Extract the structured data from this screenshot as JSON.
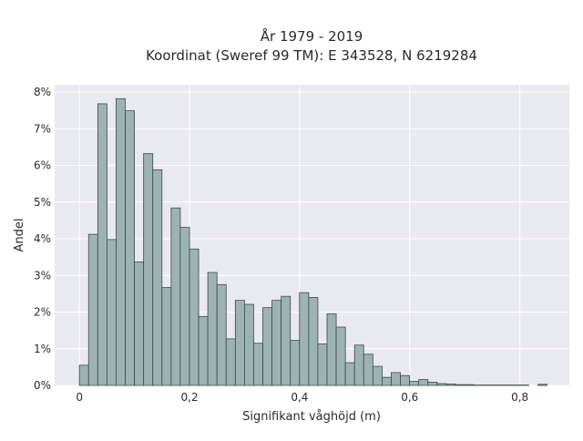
{
  "chart_data": {
    "type": "bar",
    "title_lines": [
      "År 1979 - 2019",
      "Koordinat (Sweref 99 TM): E 343528, N 6219284"
    ],
    "xlabel": "Signifikant våghöjd (m)",
    "ylabel": "Andel",
    "xlim": [
      -0.045,
      0.89
    ],
    "ylim": [
      0,
      0.082
    ],
    "grid": true,
    "bin_width": 0.01666,
    "x_ticks": [
      0,
      0.2,
      0.4,
      0.6,
      0.8
    ],
    "x_tick_labels": [
      "0",
      "0,2",
      "0,4",
      "0,6",
      "0,8"
    ],
    "y_ticks": [
      0,
      0.01,
      0.02,
      0.03,
      0.04,
      0.05,
      0.06,
      0.07,
      0.08
    ],
    "y_tick_labels": [
      "0%",
      "1%",
      "2%",
      "3%",
      "4%",
      "5%",
      "6%",
      "7%",
      "8%"
    ],
    "bin_starts": [
      0,
      0.01666,
      0.03332,
      0.04998,
      0.06664,
      0.0833,
      0.09996,
      0.11662,
      0.13328,
      0.14994,
      0.1666,
      0.18326,
      0.19992,
      0.21658,
      0.23324,
      0.2499,
      0.26656,
      0.28322,
      0.29988,
      0.31654,
      0.3332,
      0.34986,
      0.36652,
      0.38318,
      0.39984,
      0.4165,
      0.43316,
      0.44982,
      0.46648,
      0.48314,
      0.4998,
      0.51646,
      0.53312,
      0.54978,
      0.56644,
      0.5831,
      0.59976,
      0.61642,
      0.63308,
      0.64974,
      0.6664,
      0.68306,
      0.69972,
      0.71638,
      0.73304,
      0.7497,
      0.76636,
      0.78302,
      0.79968,
      0.81634,
      0.833
    ],
    "values": [
      0.0055,
      0.0412,
      0.0768,
      0.0398,
      0.0782,
      0.0749,
      0.0337,
      0.0632,
      0.0588,
      0.0267,
      0.0484,
      0.0431,
      0.0372,
      0.0188,
      0.0308,
      0.0275,
      0.0127,
      0.0232,
      0.0221,
      0.0115,
      0.0212,
      0.0232,
      0.0243,
      0.0123,
      0.0253,
      0.024,
      0.0113,
      0.0195,
      0.0159,
      0.0062,
      0.011,
      0.0085,
      0.0052,
      0.0022,
      0.0035,
      0.0027,
      0.0011,
      0.0016,
      0.0009,
      0.0005,
      0.0004,
      0.0002,
      0.0002,
      0.0001,
      0.0001,
      0.0001,
      0.0001,
      0.0001,
      0.0001,
      0,
      0.0003
    ]
  }
}
